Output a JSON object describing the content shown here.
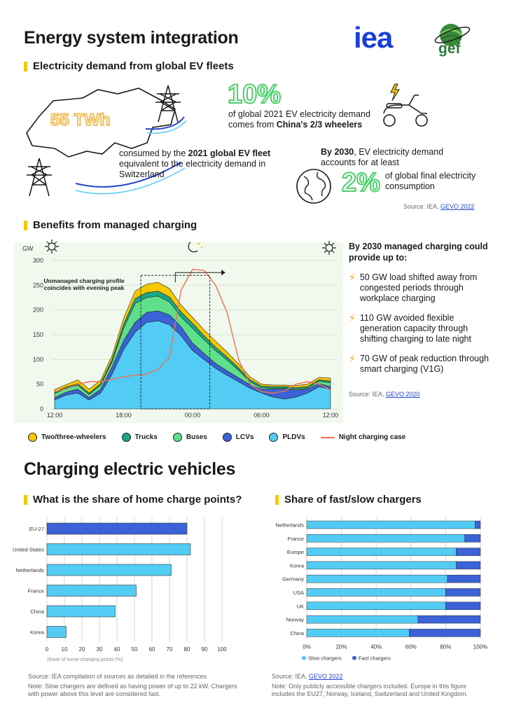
{
  "page_title": "Energy system integration",
  "logos": {
    "iea": "iea",
    "gef": "gef"
  },
  "section1": {
    "title": "Electricity demand from global EV fleets",
    "big_twh": "55 TWh",
    "twh_text_parts": [
      "consumed by the ",
      "2021 global EV fleet",
      " equivalent to the electricity demand in Switzerland"
    ],
    "pct10": "10%",
    "pct10_text_line1": "of global 2021 EV electricity demand",
    "pct10_text_line2_prefix": "comes from ",
    "pct10_text_line2_bold": "China's 2/3 wheelers",
    "y2030_bold": "By 2030",
    "y2030_text": ", EV electricity demand accounts for at least",
    "pct2": "2%",
    "pct2_text": "of global final electricity consumption",
    "source_prefix": "Source: IEA, ",
    "source_link": "GEVO 2022"
  },
  "section2": {
    "title": "Benefits from managed charging",
    "annotation": "Unmanaged charging profile coincides with evening peak",
    "benefits_title": "By 2030 managed charging could provide up to:",
    "benefits": [
      "50 GW load shifted away from congested periods through workplace charging",
      "110 GW avoided flexible generation capacity through shifting charging to late night",
      "70 GW of peak reduction through smart charging (V1G)"
    ],
    "source_prefix": "Source: IEA, ",
    "source_link": "GEVO 2020"
  },
  "section3": {
    "title": "Charging electric vehicles",
    "home_title": "What is the share of home charge points?",
    "fast_title": "Share of fast/slow chargers",
    "home_source": "Source: IEA compilation of sources as detailed in the references",
    "home_note": "Note: Slow chargers are defined as having power of up to 22 kW. Chargers with power above this level are considered fast.",
    "fast_source_prefix": "Source: IEA, ",
    "fast_source_link": "GEVO 2022",
    "fast_note": "Note: Only publicly accessible chargers included. Europe in this figure includes the EU27, Norway, Iceland, Switzerland and United Kingdom."
  },
  "colors": {
    "two_three_wheelers": "#f5c800",
    "trucks": "#1aa68a",
    "buses": "#5ee08a",
    "lcvs": "#3b62d6",
    "pldvs": "#52ccf5",
    "night": "#f07050",
    "accent_green": "#4ad06a",
    "yellow": "#f5c800"
  },
  "chart_data": [
    {
      "type": "area",
      "ylabel": "GW",
      "ylim": [
        0,
        300
      ],
      "yticks": [
        0,
        50,
        100,
        150,
        200,
        250,
        300
      ],
      "x_tick_labels": [
        "12:00",
        "18:00",
        "00:00",
        "06:00",
        "12:00"
      ],
      "x_tick_hours": [
        0,
        6,
        12,
        18,
        24
      ],
      "x_hours": [
        0,
        1,
        2,
        3,
        4,
        5,
        6,
        7,
        8,
        9,
        10,
        11,
        12,
        13,
        14,
        15,
        16,
        17,
        18,
        19,
        20,
        21,
        22,
        23,
        24
      ],
      "series": [
        {
          "name": "PLDVs",
          "values": [
            18,
            28,
            32,
            18,
            32,
            70,
            120,
            155,
            175,
            178,
            170,
            148,
            118,
            100,
            82,
            68,
            55,
            42,
            32,
            24,
            20,
            24,
            32,
            45,
            40
          ]
        },
        {
          "name": "LCVs",
          "values": [
            5,
            6,
            8,
            5,
            8,
            15,
            18,
            20,
            20,
            20,
            20,
            18,
            15,
            12,
            10,
            9,
            8,
            7,
            8,
            16,
            20,
            14,
            8,
            6,
            5
          ]
        },
        {
          "name": "Buses",
          "values": [
            8,
            7,
            8,
            6,
            8,
            10,
            25,
            38,
            30,
            30,
            26,
            20,
            30,
            28,
            26,
            22,
            15,
            6,
            3,
            2,
            2,
            2,
            2,
            5,
            8
          ]
        },
        {
          "name": "Trucks",
          "values": [
            3,
            3,
            3,
            3,
            3,
            5,
            8,
            10,
            10,
            10,
            10,
            10,
            10,
            8,
            7,
            6,
            5,
            4,
            3,
            3,
            3,
            3,
            3,
            3,
            3
          ]
        },
        {
          "name": "Two/three-wheelers",
          "values": [
            5,
            5,
            8,
            8,
            7,
            8,
            12,
            15,
            17,
            18,
            17,
            14,
            12,
            12,
            12,
            10,
            8,
            6,
            4,
            3,
            3,
            4,
            5,
            5,
            6
          ]
        }
      ],
      "line": {
        "name": "Night charging case",
        "values": [
          35,
          40,
          50,
          55,
          55,
          60,
          65,
          68,
          70,
          80,
          105,
          240,
          282,
          280,
          250,
          195,
          100,
          50,
          35,
          32,
          36,
          50,
          55,
          50,
          38
        ]
      },
      "annotation_window_hours": [
        7.5,
        13.5
      ]
    },
    {
      "type": "bar",
      "orientation": "horizontal",
      "title": "What is the share of home charge points?",
      "xlabel": "Share of home charging points (%)",
      "xlim": [
        0,
        100
      ],
      "xticks": [
        0,
        10,
        20,
        30,
        40,
        50,
        60,
        70,
        80,
        90,
        100
      ],
      "categories": [
        "EU-27",
        "United States",
        "Netherlands",
        "France",
        "China",
        "Korea"
      ],
      "values": [
        80,
        82,
        71,
        51,
        39,
        11
      ]
    },
    {
      "type": "bar",
      "orientation": "horizontal",
      "stacked": true,
      "title": "Share of fast/slow chargers",
      "xlim": [
        0,
        100
      ],
      "xticks": [
        "0%",
        "20%",
        "40%",
        "60%",
        "80%",
        "100%"
      ],
      "categories": [
        "Netherlands",
        "France",
        "Europe",
        "Korea",
        "Germany",
        "USA",
        "UK",
        "Norway",
        "China"
      ],
      "series": [
        {
          "name": "Slow chargers",
          "values": [
            97,
            91,
            86,
            86,
            81,
            80,
            80,
            64,
            59
          ]
        },
        {
          "name": "Fast chargers",
          "values": [
            3,
            9,
            14,
            14,
            19,
            20,
            20,
            36,
            41
          ]
        }
      ]
    }
  ]
}
